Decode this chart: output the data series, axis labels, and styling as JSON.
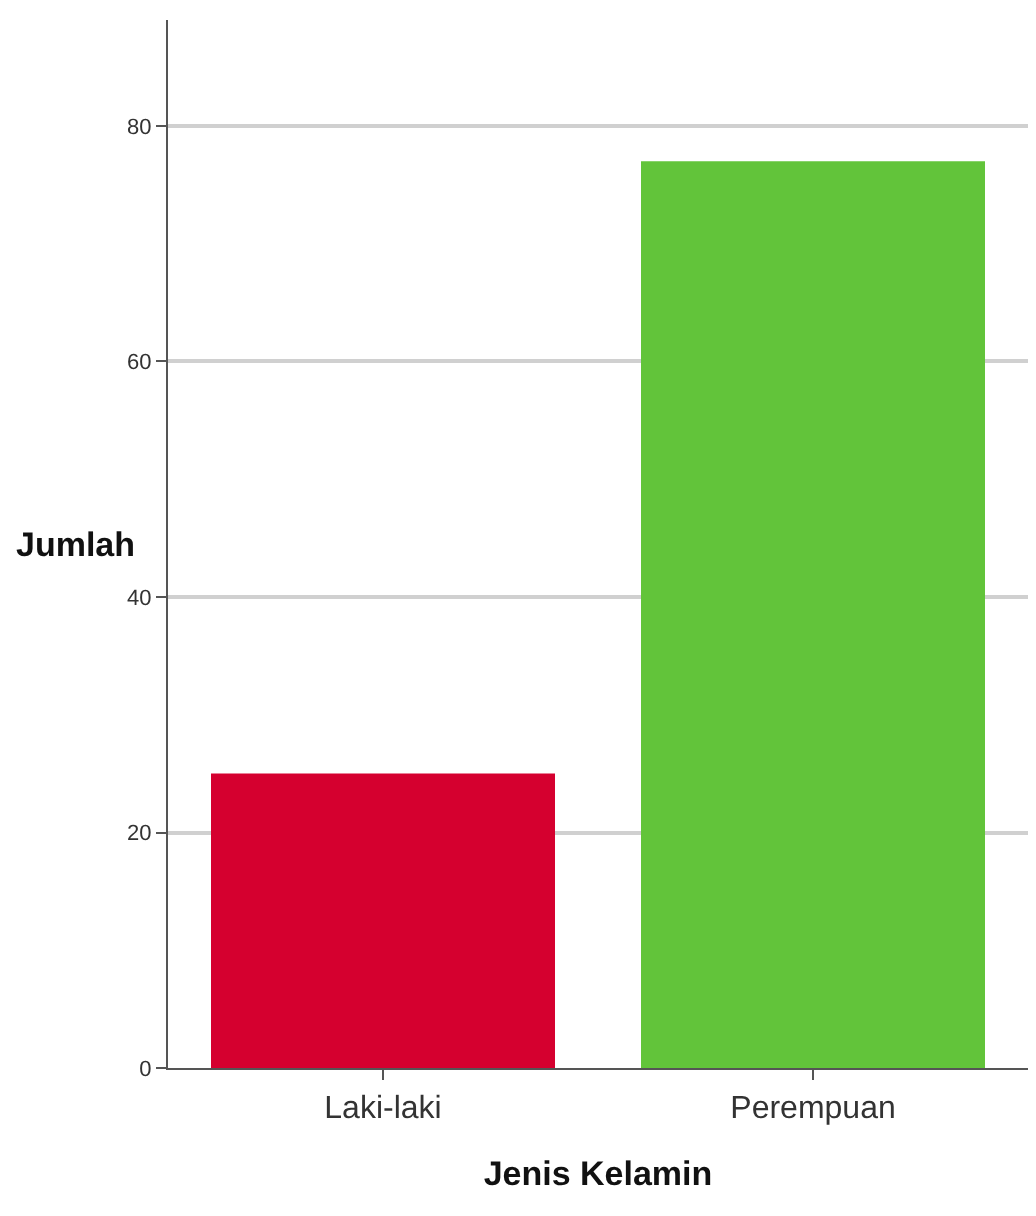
{
  "chart_data": {
    "type": "bar",
    "xlabel": "Jenis Kelamin",
    "ylabel": "Jumlah",
    "categories": [
      "Laki-laki",
      "Perempuan"
    ],
    "values": [
      25,
      77
    ],
    "colors": [
      "#d5002f",
      "#62c43a"
    ],
    "ylim": [
      0,
      89
    ],
    "yticks": [
      0,
      20,
      40,
      60,
      80
    ],
    "grid": "y"
  }
}
